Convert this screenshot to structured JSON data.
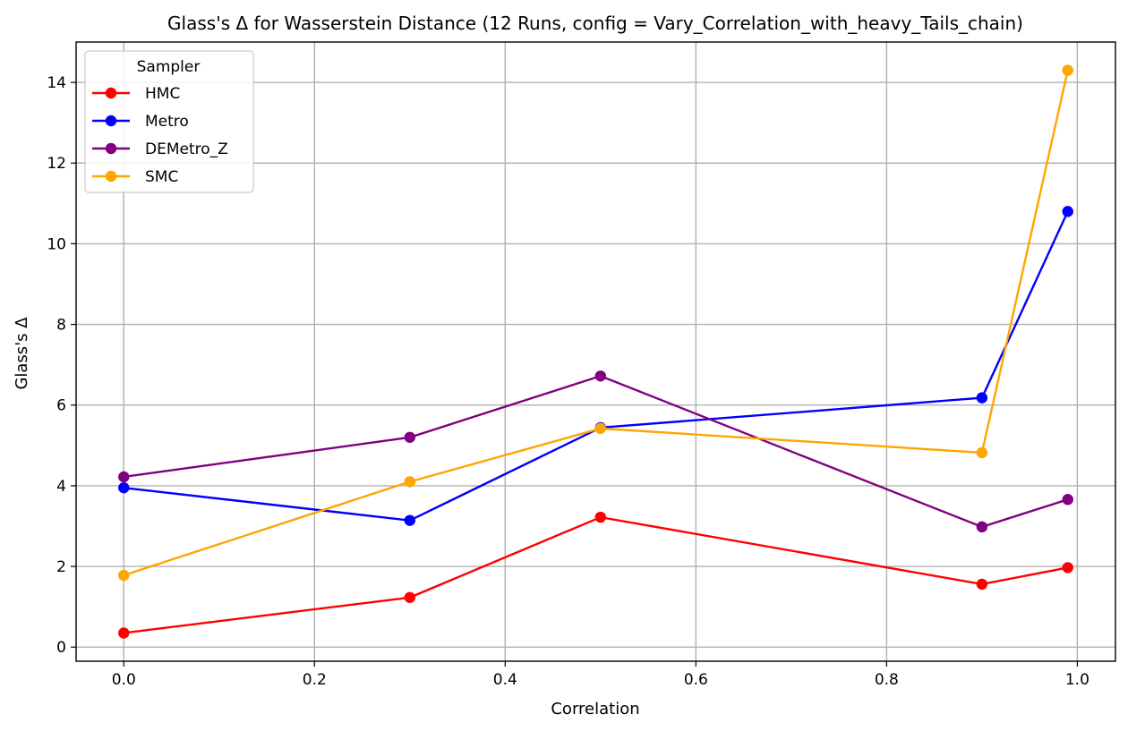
{
  "chart_data": {
    "type": "line",
    "title": "Glass's Δ for Wasserstein Distance (12 Runs, config = Vary_Correlation_with_heavy_Tails_chain)",
    "xlabel": "Correlation",
    "ylabel": "Glass's Δ",
    "xlim": [
      -0.05,
      1.04
    ],
    "ylim": [
      -0.35,
      15.0
    ],
    "xticks": [
      0.0,
      0.2,
      0.4,
      0.6,
      0.8,
      1.0
    ],
    "xtick_labels": [
      "0.0",
      "0.2",
      "0.4",
      "0.6",
      "0.8",
      "1.0"
    ],
    "yticks": [
      0,
      2,
      4,
      6,
      8,
      10,
      12,
      14
    ],
    "ytick_labels": [
      "0",
      "2",
      "4",
      "6",
      "8",
      "10",
      "12",
      "14"
    ],
    "grid": true,
    "legend": {
      "title": "Sampler",
      "placement": "top-left"
    },
    "x": [
      0.0,
      0.3,
      0.5,
      0.9,
      0.99
    ],
    "series": [
      {
        "name": "HMC",
        "color": "#ff0000",
        "values": [
          0.35,
          1.23,
          3.22,
          1.56,
          1.97
        ]
      },
      {
        "name": "Metro",
        "color": "#0000ff",
        "values": [
          3.95,
          3.14,
          5.44,
          6.18,
          10.8
        ]
      },
      {
        "name": "DEMetro_Z",
        "color": "#800080",
        "values": [
          4.22,
          5.2,
          6.72,
          2.98,
          3.66
        ]
      },
      {
        "name": "SMC",
        "color": "#ffa500",
        "values": [
          1.78,
          4.1,
          5.42,
          4.82,
          14.3
        ]
      }
    ]
  }
}
